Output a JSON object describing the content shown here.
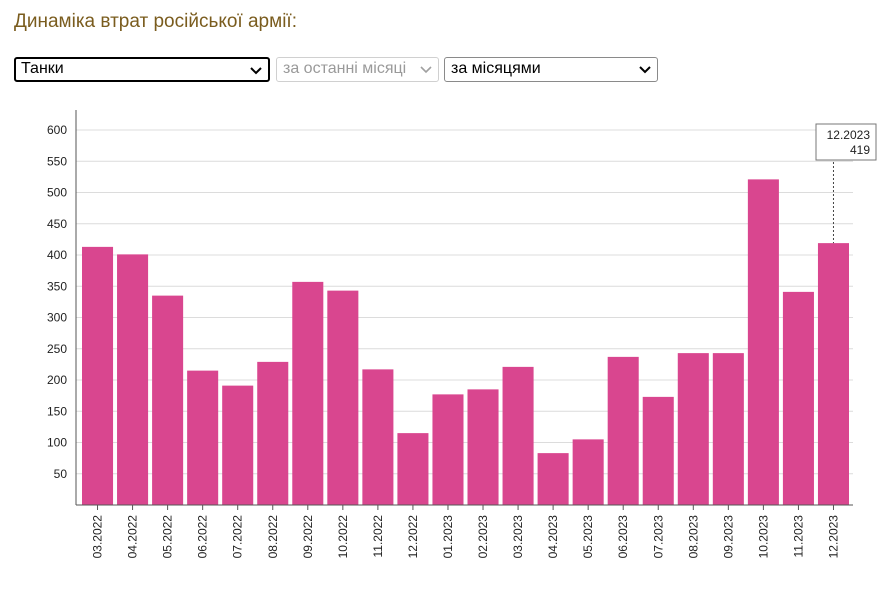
{
  "page": {
    "title": "Динаміка втрат російської армії:"
  },
  "controls": {
    "category": "Танки",
    "period": "за останні місяці",
    "grouping": "за місяцями"
  },
  "colors": {
    "bar": "#d9468f",
    "title": "#7a5c1e"
  },
  "tooltip": {
    "label": "12.2023",
    "value": "419"
  },
  "chart_data": {
    "type": "bar",
    "categories": [
      "03.2022",
      "04.2022",
      "05.2022",
      "06.2022",
      "07.2022",
      "08.2022",
      "09.2022",
      "10.2022",
      "11.2022",
      "12.2022",
      "01.2023",
      "02.2023",
      "03.2023",
      "04.2023",
      "05.2023",
      "06.2023",
      "07.2023",
      "08.2023",
      "09.2023",
      "10.2023",
      "11.2023",
      "12.2023"
    ],
    "values": [
      413,
      401,
      335,
      215,
      191,
      229,
      357,
      343,
      217,
      115,
      177,
      185,
      221,
      83,
      105,
      237,
      173,
      243,
      243,
      521,
      341,
      419
    ],
    "ylim": [
      0,
      600
    ],
    "yticks": [
      50,
      100,
      150,
      200,
      250,
      300,
      350,
      400,
      450,
      500,
      550,
      600
    ],
    "grid": true,
    "highlighted_category": "12.2023"
  }
}
